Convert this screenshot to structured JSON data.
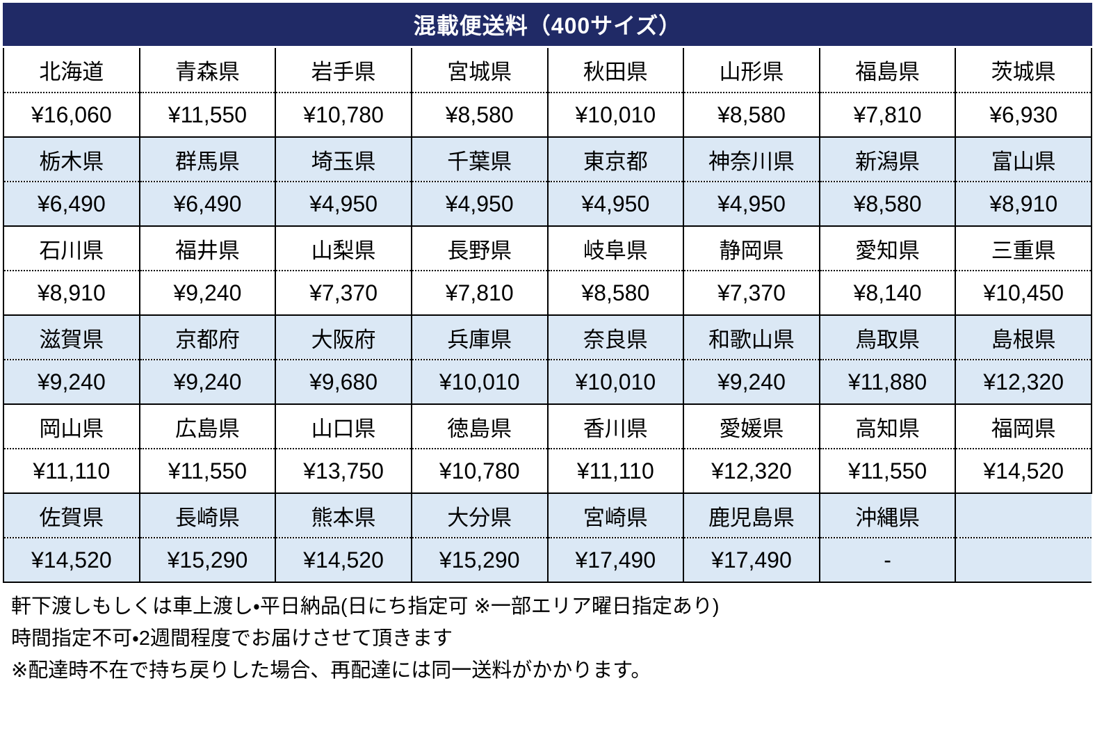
{
  "title": "混載便送料（400サイズ）",
  "colors": {
    "header_bg": "#202a66",
    "header_text": "#ffffff",
    "alt_band_bg": "#dbe8f5",
    "band_bg": "#ffffff",
    "border": "#000000"
  },
  "table": {
    "bands": [
      {
        "alt": false,
        "cells": [
          {
            "name": "北海道",
            "price": "¥16,060"
          },
          {
            "name": "青森県",
            "price": "¥11,550"
          },
          {
            "name": "岩手県",
            "price": "¥10,780"
          },
          {
            "name": "宮城県",
            "price": "¥8,580"
          },
          {
            "name": "秋田県",
            "price": "¥10,010"
          },
          {
            "name": "山形県",
            "price": "¥8,580"
          },
          {
            "name": "福島県",
            "price": "¥7,810"
          },
          {
            "name": "茨城県",
            "price": "¥6,930"
          }
        ]
      },
      {
        "alt": true,
        "cells": [
          {
            "name": "栃木県",
            "price": "¥6,490"
          },
          {
            "name": "群馬県",
            "price": "¥6,490"
          },
          {
            "name": "埼玉県",
            "price": "¥4,950"
          },
          {
            "name": "千葉県",
            "price": "¥4,950"
          },
          {
            "name": "東京都",
            "price": "¥4,950"
          },
          {
            "name": "神奈川県",
            "price": "¥4,950"
          },
          {
            "name": "新潟県",
            "price": "¥8,580"
          },
          {
            "name": "富山県",
            "price": "¥8,910"
          }
        ]
      },
      {
        "alt": false,
        "cells": [
          {
            "name": "石川県",
            "price": "¥8,910"
          },
          {
            "name": "福井県",
            "price": "¥9,240"
          },
          {
            "name": "山梨県",
            "price": "¥7,370"
          },
          {
            "name": "長野県",
            "price": "¥7,810"
          },
          {
            "name": "岐阜県",
            "price": "¥8,580"
          },
          {
            "name": "静岡県",
            "price": "¥7,370"
          },
          {
            "name": "愛知県",
            "price": "¥8,140"
          },
          {
            "name": "三重県",
            "price": "¥10,450"
          }
        ]
      },
      {
        "alt": true,
        "cells": [
          {
            "name": "滋賀県",
            "price": "¥9,240"
          },
          {
            "name": "京都府",
            "price": "¥9,240"
          },
          {
            "name": "大阪府",
            "price": "¥9,680"
          },
          {
            "name": "兵庫県",
            "price": "¥10,010"
          },
          {
            "name": "奈良県",
            "price": "¥10,010"
          },
          {
            "name": "和歌山県",
            "price": "¥9,240"
          },
          {
            "name": "鳥取県",
            "price": "¥11,880"
          },
          {
            "name": "島根県",
            "price": "¥12,320"
          }
        ]
      },
      {
        "alt": false,
        "cells": [
          {
            "name": "岡山県",
            "price": "¥11,110"
          },
          {
            "name": "広島県",
            "price": "¥11,550"
          },
          {
            "name": "山口県",
            "price": "¥13,750"
          },
          {
            "name": "徳島県",
            "price": "¥10,780"
          },
          {
            "name": "香川県",
            "price": "¥11,110"
          },
          {
            "name": "愛媛県",
            "price": "¥12,320"
          },
          {
            "name": "高知県",
            "price": "¥11,550"
          },
          {
            "name": "福岡県",
            "price": "¥14,520"
          }
        ]
      },
      {
        "alt": true,
        "cells": [
          {
            "name": "佐賀県",
            "price": "¥14,520"
          },
          {
            "name": "長崎県",
            "price": "¥15,290"
          },
          {
            "name": "熊本県",
            "price": "¥14,520"
          },
          {
            "name": "大分県",
            "price": "¥15,290"
          },
          {
            "name": "宮崎県",
            "price": "¥17,490"
          },
          {
            "name": "鹿児島県",
            "price": "¥17,490"
          },
          {
            "name": "沖縄県",
            "price": "-"
          },
          null
        ]
      }
    ]
  },
  "notes": [
    "軒下渡しもしくは車上渡し・平日納品(日にち指定可 ※一部エリア曜日指定あり)",
    "時間指定不可・2週間程度でお届けさせて頂きます",
    "※配達時不在で持ち戻りした場合、再配達には同一送料がかかります。"
  ]
}
